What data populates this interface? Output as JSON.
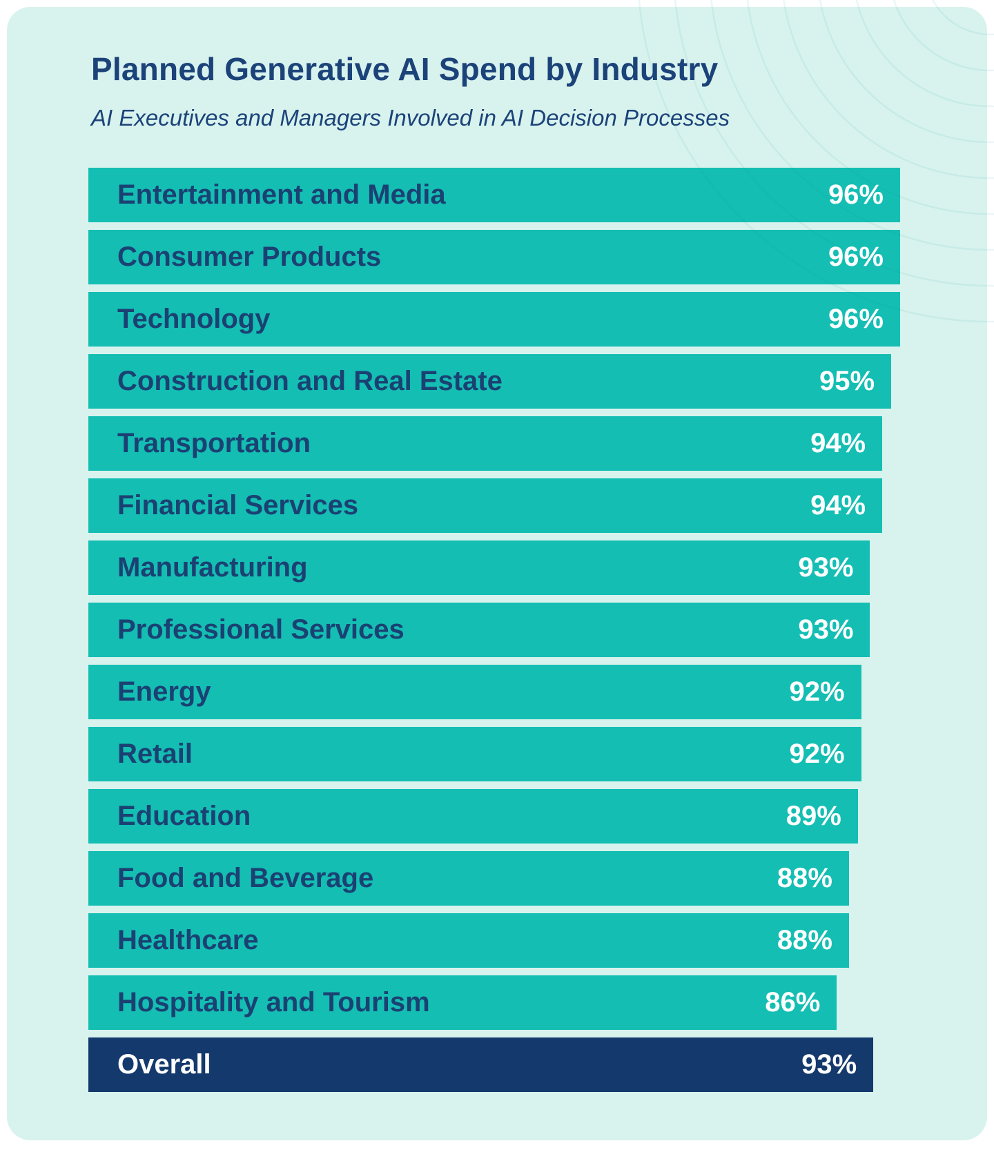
{
  "page": {
    "background": "#FFFFFF"
  },
  "card": {
    "background": "#D8F3EE"
  },
  "chart_data": {
    "type": "bar",
    "orientation": "horizontal",
    "title": "Planned Generative AI Spend by Industry",
    "subtitle": "AI Executives and Managers Involved in AI Decision Processes",
    "unit": "%",
    "value_range": [
      0,
      100
    ],
    "grid": false,
    "legend": false,
    "bar_color": "#14BEB3",
    "highlight_bar_color": "#14396C",
    "title_color": "#1C4379",
    "label_color": "#1B4173",
    "value_color": "#FFFFFF",
    "categories": [
      "Entertainment and Media",
      "Consumer Products",
      "Technology",
      "Construction and Real Estate",
      "Transportation",
      "Financial Services",
      "Manufacturing",
      "Professional Services",
      "Energy",
      "Retail",
      "Education",
      "Food and Beverage",
      "Healthcare",
      "Hospitality and Tourism",
      "Overall"
    ],
    "values": [
      96,
      96,
      96,
      95,
      94,
      94,
      93,
      93,
      92,
      92,
      89,
      88,
      88,
      86,
      93
    ],
    "highlight_index": 14,
    "bar_width_pct": [
      100,
      100,
      100,
      98.9,
      97.8,
      97.8,
      96.3,
      96.3,
      95.2,
      95.2,
      94.8,
      93.7,
      93.7,
      92.2,
      96.7
    ]
  }
}
